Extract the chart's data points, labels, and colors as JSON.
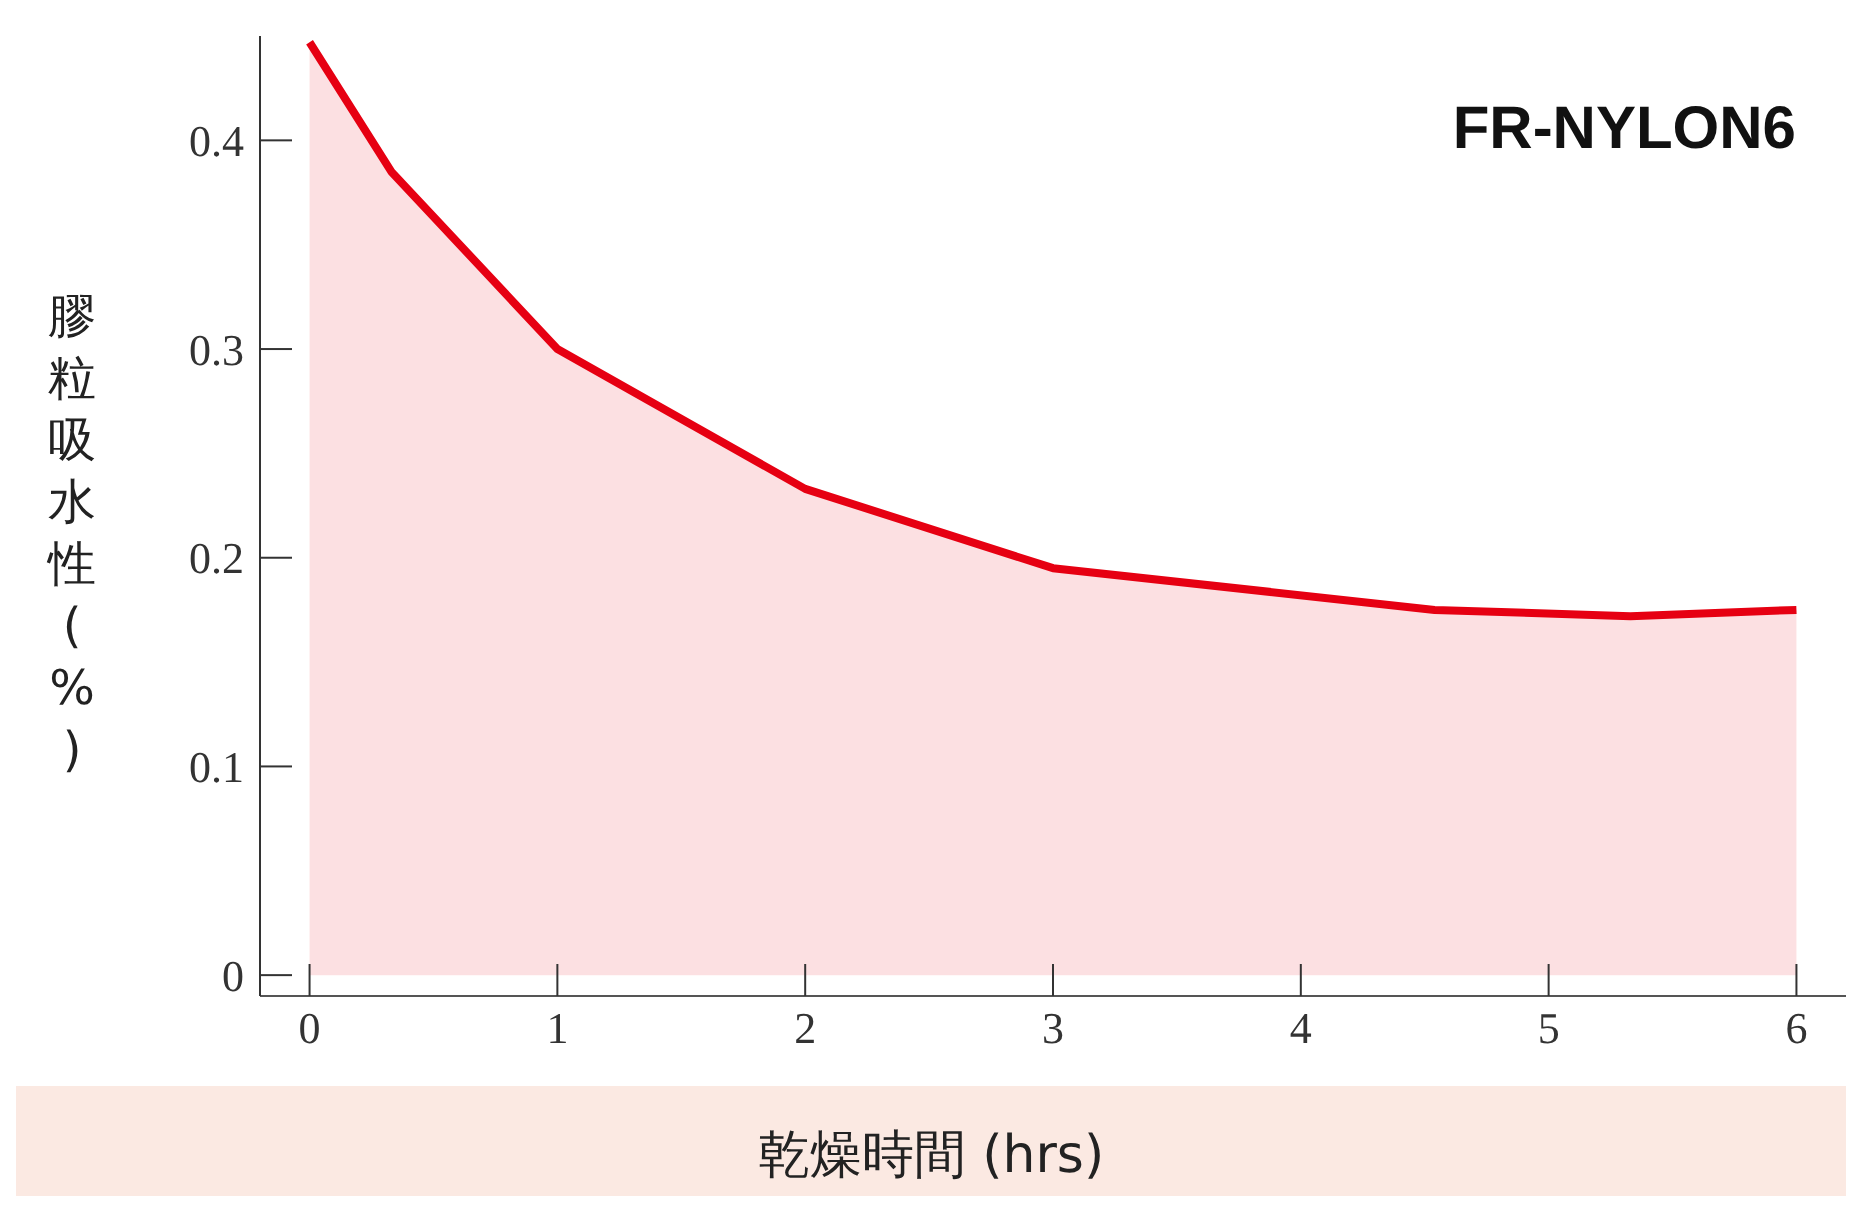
{
  "chart_data": {
    "type": "area",
    "xlabel": "乾燥時間 (hrs)",
    "ylabel": "膠粒吸水性(%)",
    "annotations": [
      "FR-NYLON6"
    ],
    "x": [
      0,
      0.33,
      1,
      2,
      3,
      4.54,
      5.33,
      6
    ],
    "series": [
      {
        "color": "#e60012",
        "values": [
          0.447,
          0.385,
          0.3,
          0.233,
          0.195,
          0.175,
          0.172,
          0.175
        ]
      }
    ],
    "xlim": [
      -0.2,
      6.2
    ],
    "xticks": [
      0,
      1,
      2,
      3,
      4,
      5,
      6
    ],
    "ylim": [
      -0.01,
      0.45
    ],
    "yticks": [
      0,
      0.1,
      0.2,
      0.3,
      0.4
    ],
    "grid": false,
    "marker": "none",
    "line_style": "solid"
  }
}
